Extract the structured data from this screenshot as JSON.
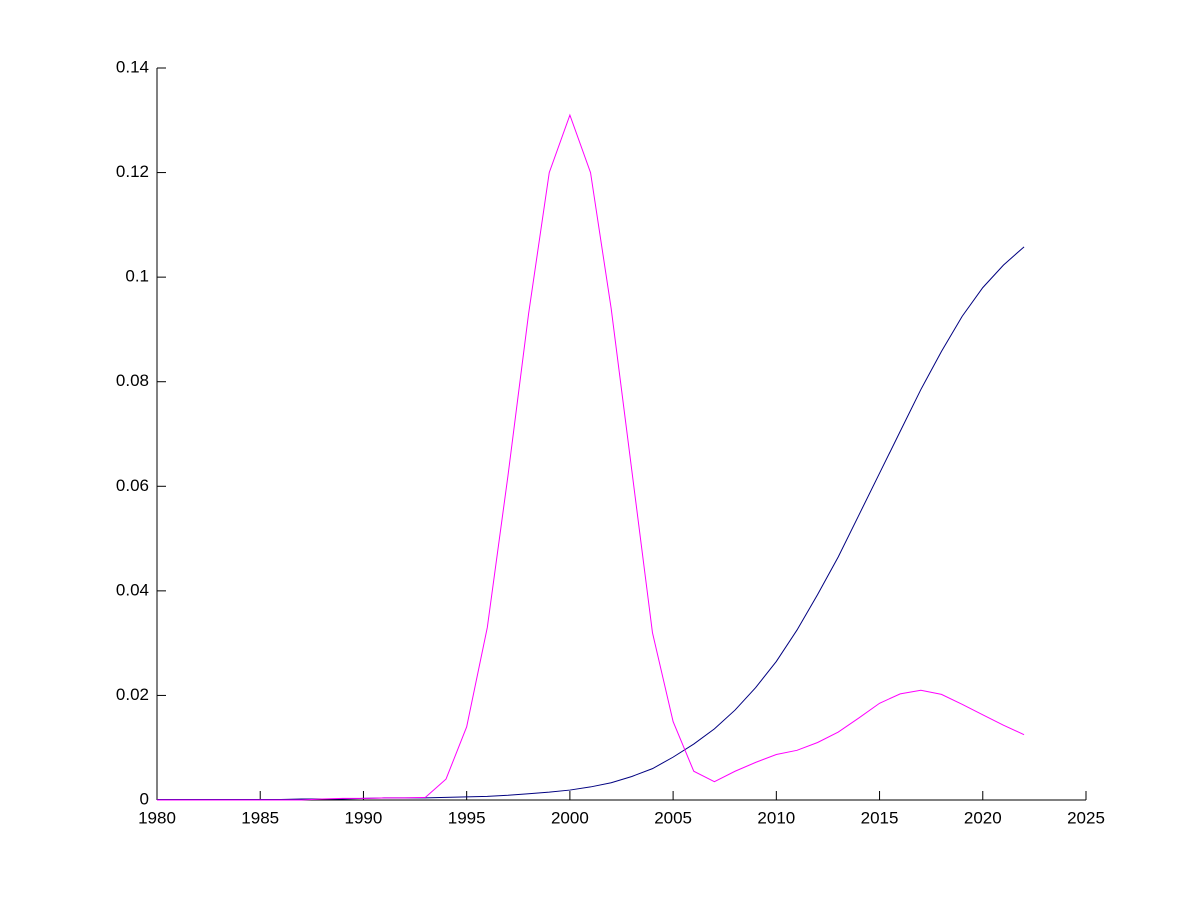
{
  "chart_data": {
    "type": "line",
    "x": [
      1980,
      1981,
      1982,
      1983,
      1984,
      1985,
      1986,
      1987,
      1988,
      1989,
      1990,
      1991,
      1992,
      1993,
      1994,
      1995,
      1996,
      1997,
      1998,
      1999,
      2000,
      2001,
      2002,
      2003,
      2004,
      2005,
      2006,
      2007,
      2008,
      2009,
      2010,
      2011,
      2012,
      2013,
      2014,
      2015,
      2016,
      2017,
      2018,
      2019,
      2020,
      2021,
      2022
    ],
    "series": [
      {
        "color": "#000080",
        "values": [
          0.0001,
          0.0001,
          0.0001,
          0.0001,
          0.0001,
          0.0001,
          0.0001,
          0.0002,
          0.0002,
          0.0002,
          0.0003,
          0.0004,
          0.0004,
          0.0004,
          0.0005,
          0.0006,
          0.0007,
          0.0009,
          0.0012,
          0.0015,
          0.0019,
          0.0025,
          0.0033,
          0.0045,
          0.006,
          0.0082,
          0.0107,
          0.0136,
          0.0172,
          0.0215,
          0.0265,
          0.0325,
          0.0393,
          0.0465,
          0.0545,
          0.0625,
          0.0705,
          0.0785,
          0.0858,
          0.0925,
          0.098,
          0.1023,
          0.1058
        ]
      },
      {
        "color": "#ff00ff",
        "values": [
          0,
          0,
          0,
          0,
          0,
          0,
          0,
          0,
          0.0002,
          0.0003,
          0.0003,
          0.0004,
          0.0004,
          0.0005,
          0.004,
          0.014,
          0.033,
          0.062,
          0.093,
          0.12,
          0.131,
          0.12,
          0.094,
          0.063,
          0.032,
          0.015,
          0.0055,
          0.0035,
          0.0055,
          0.0072,
          0.0087,
          0.0095,
          0.011,
          0.013,
          0.0157,
          0.0185,
          0.0203,
          0.021,
          0.0202,
          0.0183,
          0.0163,
          0.0143,
          0.0125
        ]
      }
    ],
    "xlim": [
      1980,
      2025
    ],
    "xticks": [
      1980,
      1985,
      1990,
      1995,
      2000,
      2005,
      2010,
      2015,
      2020,
      2025
    ],
    "ylim": [
      0,
      0.14
    ],
    "yticks": [
      0,
      0.02,
      0.04,
      0.06,
      0.08,
      0.1,
      0.12,
      0.14
    ],
    "grid": false
  }
}
